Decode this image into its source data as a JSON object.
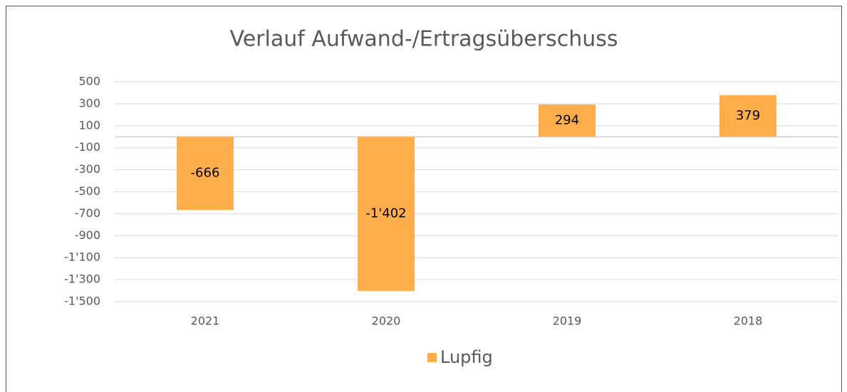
{
  "chart_data": {
    "type": "bar",
    "title": "Verlauf Aufwand-/Ertragsüberschuss",
    "categories": [
      "2021",
      "2020",
      "2019",
      "2018"
    ],
    "series": [
      {
        "name": "Lupfig",
        "color": "#ffae4b",
        "values": [
          -666,
          -1402,
          294,
          379
        ],
        "value_labels": [
          "-666",
          "-1'402",
          "294",
          "379"
        ]
      }
    ],
    "ylim": [
      -1500,
      500
    ],
    "yticks": [
      500,
      300,
      100,
      -100,
      -300,
      -500,
      -700,
      -900,
      {
        "value": -1100,
        "label": "-1'100"
      },
      {
        "value": -1300,
        "label": "-1'300"
      },
      {
        "value": -1500,
        "label": "-1'500"
      }
    ],
    "grid": true,
    "legend": "bottom"
  }
}
